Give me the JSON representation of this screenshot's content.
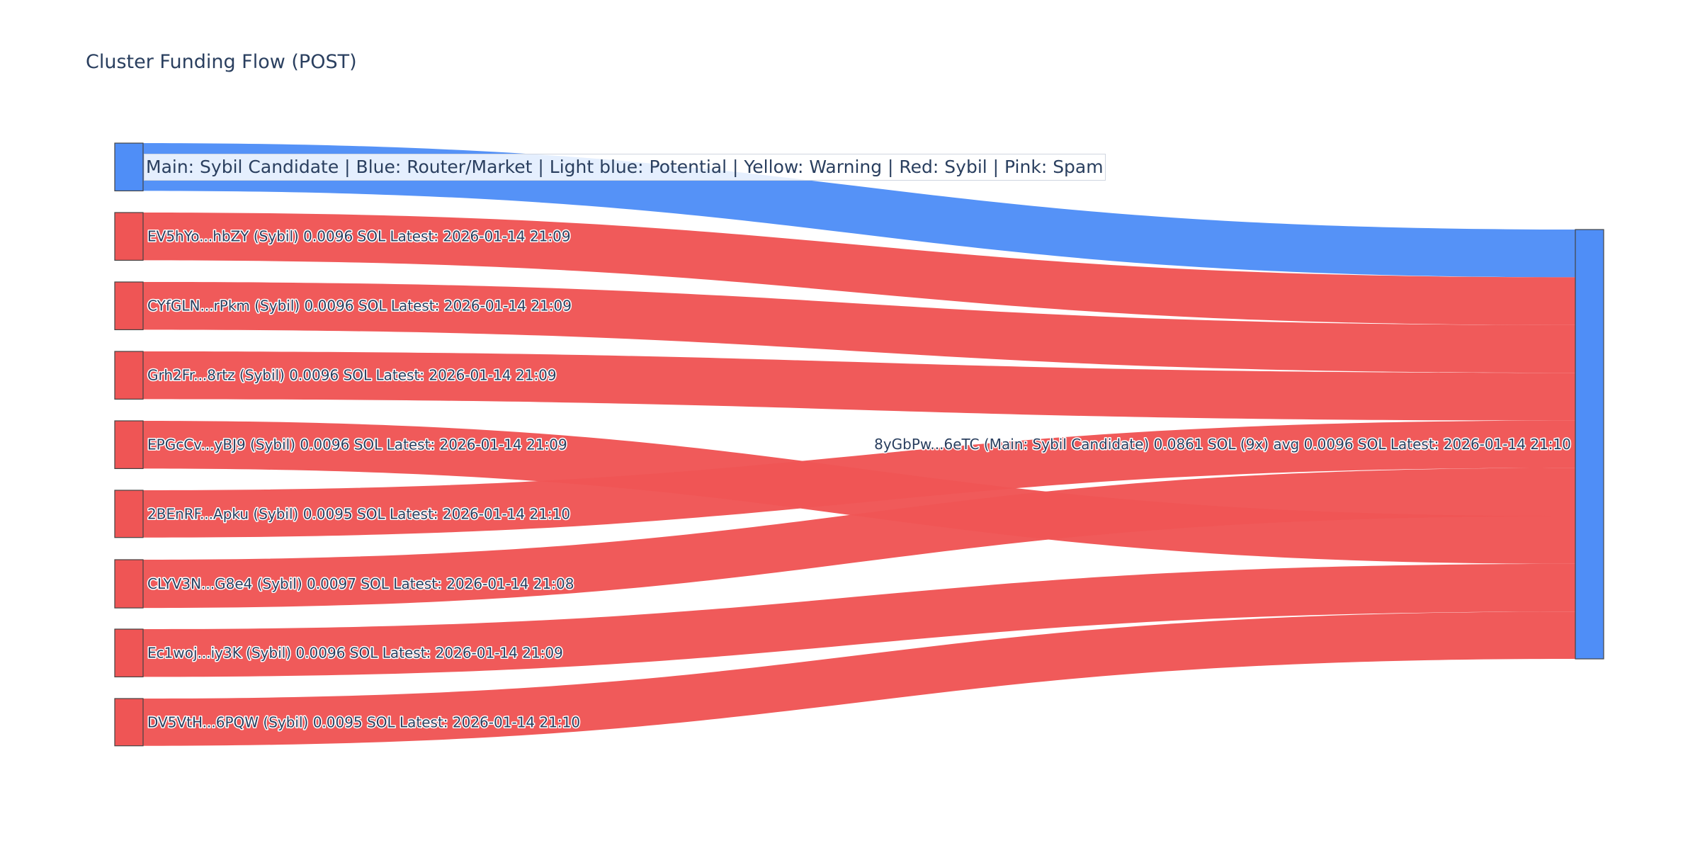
{
  "title": "Cluster Funding Flow (POST)",
  "legend_text": "Main: Sybil Candidate  |  Blue: Router/Market | Light blue: Potential | Yellow: Warning | Red: Sybil | Pink: Spam",
  "colors": {
    "sybil": "#ef5555",
    "router": "#4f8ef7",
    "title": "#2a3f5f"
  },
  "chart_data": {
    "type": "sankey",
    "title": "Cluster Funding Flow (POST)",
    "target": {
      "label": "8yGbPw...6eTC (Main: Sybil Candidate) 0.0861 SOL (9x) avg 0.0096 SOL Latest: 2026-01-14 21:10",
      "color": "#4f8ef7"
    },
    "sources": [
      {
        "label": "",
        "value": 0.0096,
        "color": "#4f8ef7"
      },
      {
        "label": "EV5hYo...hbZY (Sybil) 0.0096 SOL Latest: 2026-01-14 21:09",
        "value": 0.0096,
        "color": "#ef5555"
      },
      {
        "label": "CYfGLN...rPkm (Sybil) 0.0096 SOL Latest: 2026-01-14 21:09",
        "value": 0.0096,
        "color": "#ef5555"
      },
      {
        "label": "Grh2Fr...8rtz (Sybil) 0.0096 SOL Latest: 2026-01-14 21:09",
        "value": 0.0096,
        "color": "#ef5555"
      },
      {
        "label": "EPGcCv...yBJ9 (Sybil) 0.0096 SOL Latest: 2026-01-14 21:09",
        "value": 0.0096,
        "color": "#ef5555"
      },
      {
        "label": "2BEnRF...Apku (Sybil) 0.0095 SOL Latest: 2026-01-14 21:10",
        "value": 0.0095,
        "color": "#ef5555"
      },
      {
        "label": "CLYV3N...G8e4 (Sybil) 0.0097 SOL Latest: 2026-01-14 21:08",
        "value": 0.0097,
        "color": "#ef5555"
      },
      {
        "label": "Ec1woj...iy3K (Sybil) 0.0096 SOL Latest: 2026-01-14 21:09",
        "value": 0.0096,
        "color": "#ef5555"
      },
      {
        "label": "DV5VtH...6PQW (Sybil) 0.0095 SOL Latest: 2026-01-14 21:10",
        "value": 0.0095,
        "color": "#ef5555"
      }
    ],
    "target_order": [
      0,
      1,
      2,
      3,
      5,
      6,
      4,
      7,
      8
    ]
  }
}
